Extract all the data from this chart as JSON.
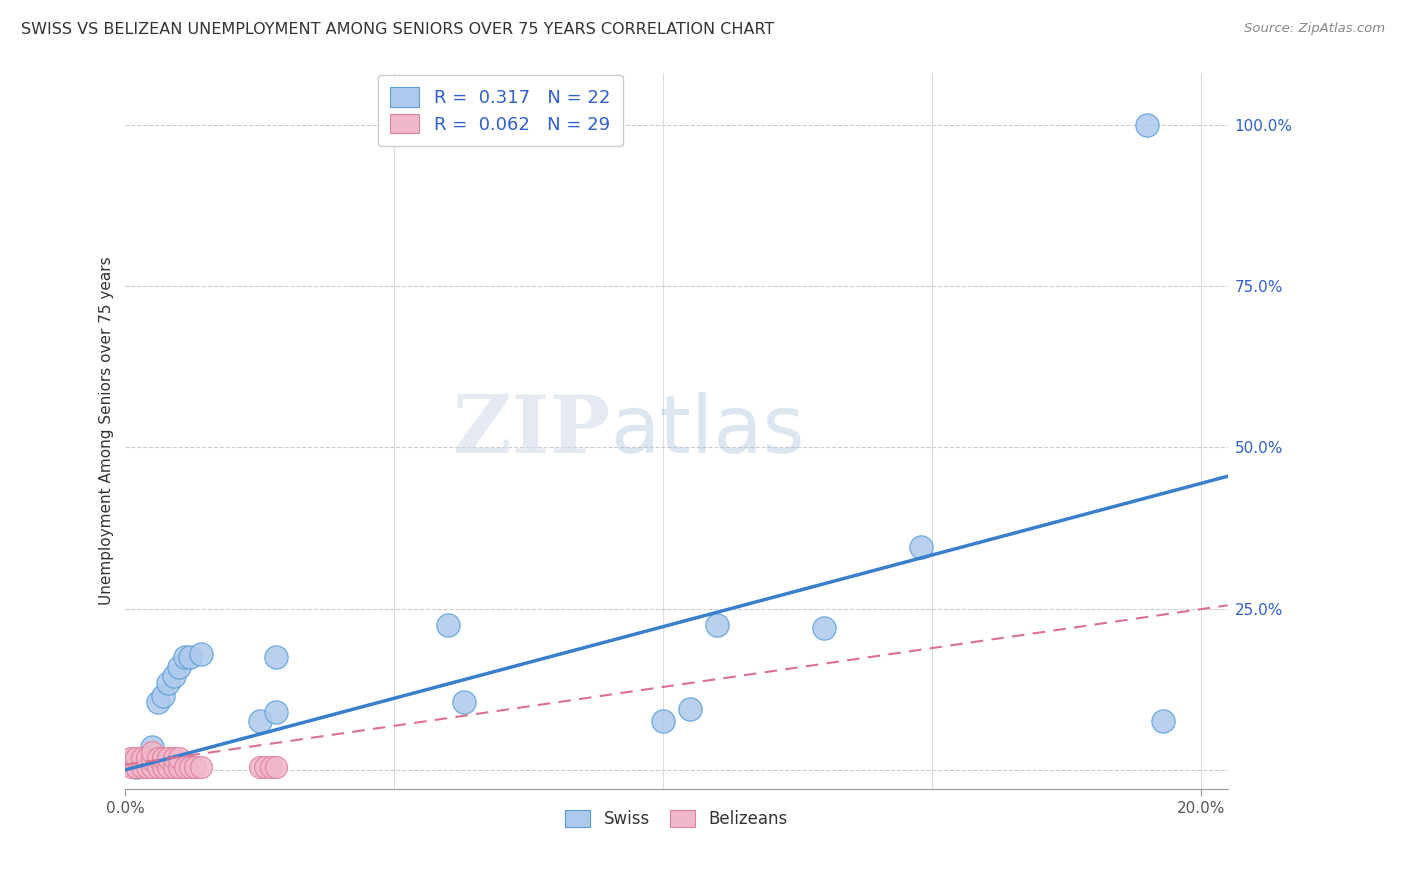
{
  "title": "SWISS VS BELIZEAN UNEMPLOYMENT AMONG SENIORS OVER 75 YEARS CORRELATION CHART",
  "source": "Source: ZipAtlas.com",
  "ylabel": "Unemployment Among Seniors over 75 years",
  "watermark_zip": "ZIP",
  "watermark_atlas": "atlas",
  "swiss_R": "0.317",
  "swiss_N": "22",
  "belize_R": "0.062",
  "belize_N": "29",
  "swiss_color": "#adc9ed",
  "swiss_edge_color": "#5a9fd4",
  "swiss_line_color": "#3a7fcc",
  "belize_color": "#f0b8c8",
  "belize_edge_color": "#e080a0",
  "belize_line_color": "#dd7090",
  "legend_swiss_label": "Swiss",
  "legend_belize_label": "Belizeans",
  "legend_text_color": "#3060cc",
  "xlim": [
    0.0,
    0.205
  ],
  "ylim": [
    -0.03,
    1.08
  ],
  "background_color": "#ffffff",
  "grid_color": "#cccccc",
  "title_color": "#333333",
  "source_color": "#888888",
  "axis_label_color": "#333333",
  "tick_label_color": "#3060cc",
  "x_tick_color": "#555555",
  "swiss_x": [
    0.002,
    0.005,
    0.006,
    0.007,
    0.008,
    0.009,
    0.01,
    0.011,
    0.012,
    0.014,
    0.025,
    0.028,
    0.06,
    0.063,
    0.1,
    0.105,
    0.11,
    0.148,
    0.193,
    0.028,
    0.13,
    0.19
  ],
  "swiss_y": [
    0.005,
    0.035,
    0.105,
    0.115,
    0.135,
    0.145,
    0.16,
    0.175,
    0.175,
    0.18,
    0.075,
    0.09,
    0.225,
    0.105,
    0.075,
    0.095,
    0.225,
    0.345,
    0.075,
    0.175,
    0.22,
    1.0
  ],
  "belize_x": [
    0.001,
    0.001,
    0.002,
    0.002,
    0.003,
    0.003,
    0.004,
    0.004,
    0.005,
    0.005,
    0.005,
    0.006,
    0.006,
    0.007,
    0.007,
    0.008,
    0.008,
    0.009,
    0.009,
    0.01,
    0.01,
    0.011,
    0.012,
    0.013,
    0.014,
    0.025,
    0.026,
    0.027,
    0.028
  ],
  "belize_y": [
    0.005,
    0.018,
    0.005,
    0.018,
    0.005,
    0.018,
    0.005,
    0.018,
    0.005,
    0.015,
    0.028,
    0.005,
    0.018,
    0.005,
    0.018,
    0.005,
    0.018,
    0.005,
    0.018,
    0.005,
    0.018,
    0.005,
    0.005,
    0.005,
    0.005,
    0.005,
    0.005,
    0.005,
    0.005
  ],
  "swiss_regress_x0": 0.0,
  "swiss_regress_y0": 0.0,
  "swiss_regress_x1": 0.205,
  "swiss_regress_y1": 0.455,
  "belize_regress_x0": 0.0,
  "belize_regress_y0": 0.008,
  "belize_regress_x1": 0.205,
  "belize_regress_y1": 0.255
}
